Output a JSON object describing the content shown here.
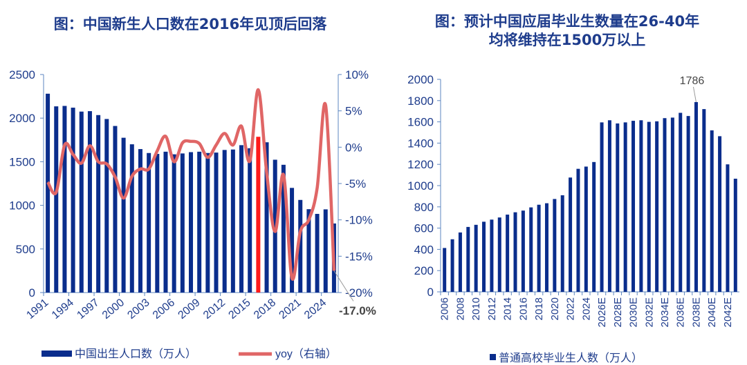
{
  "colors": {
    "bar": "#0a2d8c",
    "highlight": "#ff1a1a",
    "line": "#e06666",
    "axis": "#5b86c0",
    "text": "#1e3c8c"
  },
  "chart_data": [
    {
      "type": "bar+line",
      "title": "图：中国新生人口数在2016年见顶后回落",
      "categories": [
        1991,
        1992,
        1993,
        1994,
        1995,
        1996,
        1997,
        1998,
        1999,
        2000,
        2001,
        2002,
        2003,
        2004,
        2005,
        2006,
        2007,
        2008,
        2009,
        2010,
        2011,
        2012,
        2013,
        2014,
        2015,
        2016,
        2017,
        2018,
        2019,
        2020,
        2021,
        2022,
        2023,
        2024,
        2025
      ],
      "x_ticks": [
        "1991",
        "1994",
        "1997",
        "2000",
        "2003",
        "2006",
        "2009",
        "2012",
        "2015",
        "2018",
        "2021",
        "2024"
      ],
      "series": [
        {
          "name": "中国出生人口数（万人）",
          "type": "bar",
          "axis": "left",
          "highlight": "2016",
          "values": [
            2280,
            2135,
            2140,
            2120,
            2075,
            2080,
            2035,
            1990,
            1910,
            1775,
            1700,
            1645,
            1600,
            1590,
            1615,
            1585,
            1595,
            1610,
            1615,
            1600,
            1605,
            1635,
            1640,
            1690,
            1655,
            1786,
            1723,
            1523,
            1465,
            1200,
            1062,
            956,
            902,
            954,
            792
          ]
        },
        {
          "name": "yoy（右轴）",
          "type": "line",
          "axis": "right",
          "values": [
            -4.8,
            -6.2,
            0.3,
            -1.0,
            -2.2,
            0.2,
            -2.0,
            -2.3,
            -4.1,
            -7.0,
            -4.0,
            -3.0,
            -3.0,
            -0.5,
            1.5,
            -2.0,
            0.6,
            0.8,
            0.5,
            -1.4,
            0.3,
            1.9,
            0.3,
            2.9,
            -1.9,
            7.9,
            -3.5,
            -11.6,
            -3.8,
            -18.0,
            -11.6,
            -10.0,
            -5.6,
            5.8,
            -17.0
          ]
        }
      ],
      "ylim_left": [
        0,
        2500
      ],
      "yticks_left": [
        "0",
        "500",
        "1000",
        "1500",
        "2000",
        "2500"
      ],
      "ylim_right": [
        -20,
        10
      ],
      "yticks_right": [
        "-20%",
        "-15%",
        "-10%",
        "-5%",
        "0%",
        "5%",
        "10%"
      ],
      "annotation": "-17.0%",
      "legend": "bottom"
    },
    {
      "type": "bar",
      "title_line1": "图：预计中国应届毕业生数量在26-40年",
      "title_line2": "均将维持在1500万以上",
      "categories": [
        "2006",
        "2007",
        "2008",
        "2009",
        "2010",
        "2011",
        "2012",
        "2013",
        "2014",
        "2015",
        "2016",
        "2017",
        "2018",
        "2019",
        "2020",
        "2021",
        "2022",
        "2023",
        "2024",
        "2025",
        "2026E",
        "2027E",
        "2028E",
        "2029E",
        "2030E",
        "2031E",
        "2032E",
        "2033E",
        "2034E",
        "2035E",
        "2036E",
        "2037E",
        "2038E",
        "2039E",
        "2040E",
        "2041E",
        "2042E",
        "2043E"
      ],
      "x_ticks": [
        "2006",
        "2008",
        "2010",
        "2012",
        "2014",
        "2016",
        "2018",
        "2020",
        "2022",
        "2024",
        "2026E",
        "2028E",
        "2030E",
        "2032E",
        "2034E",
        "2036E",
        "2038E",
        "2040E",
        "2042E"
      ],
      "series": [
        {
          "name": "普通高校毕业生人数（万人）",
          "values": [
            413,
            495,
            559,
            611,
            631,
            660,
            680,
            700,
            727,
            749,
            765,
            795,
            820,
            834,
            874,
            909,
            1076,
            1158,
            1179,
            1222,
            1595,
            1615,
            1585,
            1595,
            1610,
            1615,
            1600,
            1605,
            1635,
            1640,
            1685,
            1655,
            1786,
            1720,
            1520,
            1465,
            1200,
            1065
          ]
        }
      ],
      "ylim": [
        0,
        2000
      ],
      "yticks": [
        "0",
        "200",
        "400",
        "600",
        "800",
        "1000",
        "1200",
        "1400",
        "1600",
        "1800",
        "2000"
      ],
      "annotation": "1786",
      "legend": "bottom"
    }
  ]
}
